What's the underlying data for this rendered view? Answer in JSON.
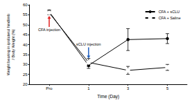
{
  "chart_data": {
    "type": "line",
    "x_label": "Time (Day)",
    "y_label": "Weight bearing in ipsilateral hindlimb\n/ Body Weight (%)",
    "categories": [
      "Pro",
      "1",
      "3",
      "5"
    ],
    "series": [
      {
        "name": "CFA + sCLU",
        "color": "#000000",
        "marker": "circle",
        "values": [
          56.5,
          29.5,
          42.5,
          43
        ],
        "errors": [
          1,
          1.5,
          5.5,
          2.5
        ]
      },
      {
        "name": "CFA + Saline",
        "color": "#000000",
        "marker": "open_circle",
        "values": [
          56,
          31,
          27,
          28.5
        ],
        "errors": [
          1,
          2,
          2,
          1.5
        ]
      }
    ],
    "annotations": [
      {
        "text": "CFA injection",
        "x": "Pro",
        "color": "#e02020"
      },
      {
        "text": "sCLU injection",
        "x": "1",
        "color": "#1f5fbf"
      }
    ],
    "ylim": [
      20,
      60
    ],
    "yticks": [
      20,
      25,
      30,
      35,
      40,
      45,
      50,
      55,
      60
    ],
    "legend": "upper right",
    "grid": false
  }
}
